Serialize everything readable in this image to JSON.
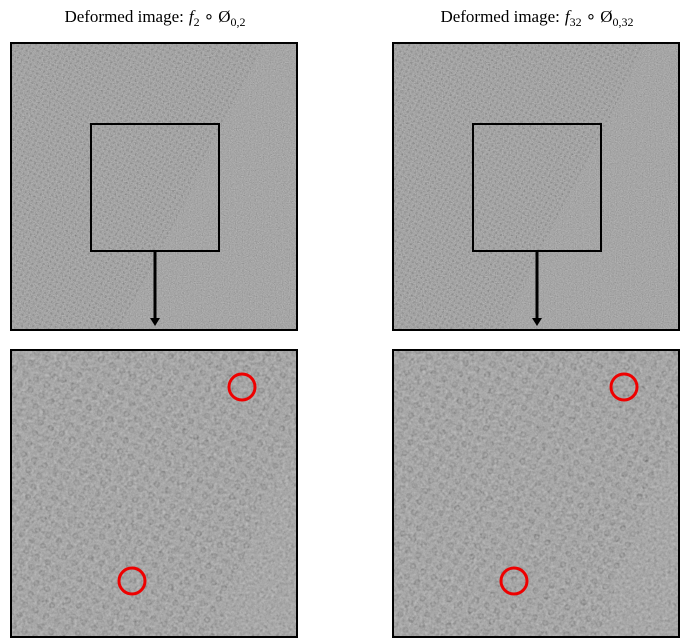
{
  "panels": [
    {
      "caption": {
        "prefix": "Deformed image:",
        "f": "f",
        "f_sub": "2",
        "op": "∘",
        "phi": "Ø",
        "phi_sub": "0,2"
      }
    },
    {
      "caption": {
        "prefix": "Deformed image:",
        "f": "f",
        "f_sub": "32",
        "op": "∘",
        "phi": "Ø",
        "phi_sub": "0,32"
      }
    }
  ]
}
